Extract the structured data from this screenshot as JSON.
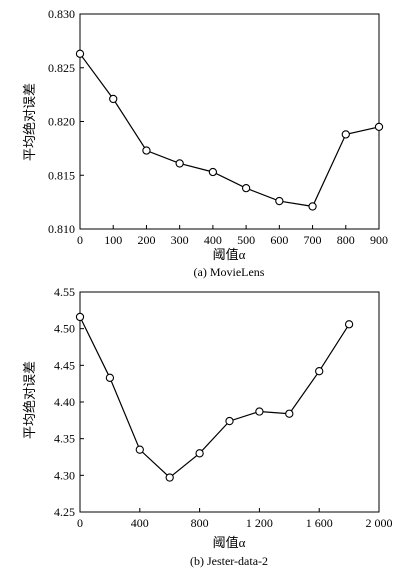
{
  "chart_data": [
    {
      "type": "line",
      "caption": "(a) MovieLens",
      "xlabel": "阈值α",
      "ylabel": "平均绝对误差",
      "xlim": [
        0,
        900
      ],
      "ylim": [
        0.81,
        0.83
      ],
      "xticks": [
        0,
        100,
        200,
        300,
        400,
        500,
        600,
        700,
        800,
        900
      ],
      "xtick_labels": [
        "0",
        "100",
        "200",
        "300",
        "400",
        "500",
        "600",
        "700",
        "800",
        "900"
      ],
      "yticks": [
        0.81,
        0.815,
        0.82,
        0.825,
        0.83
      ],
      "ytick_labels": [
        "0.810",
        "0.815",
        "0.820",
        "0.825",
        "0.830"
      ],
      "grid": false,
      "marker": "circle",
      "series": [
        {
          "x": [
            0,
            100,
            200,
            300,
            400,
            500,
            600,
            700,
            800,
            900
          ],
          "y": [
            0.8263,
            0.8221,
            0.8173,
            0.8161,
            0.8153,
            0.8138,
            0.8126,
            0.8121,
            0.8188,
            0.8195
          ]
        }
      ]
    },
    {
      "type": "line",
      "caption": "(b) Jester-data-2",
      "xlabel": "阈值α",
      "ylabel": "平均绝对误差",
      "xlim": [
        0,
        2000
      ],
      "ylim": [
        4.25,
        4.55
      ],
      "xticks": [
        0,
        400,
        800,
        1200,
        1600,
        2000
      ],
      "xtick_labels": [
        "0",
        "400",
        "800",
        "1 200",
        "1 600",
        "2 000"
      ],
      "yticks": [
        4.25,
        4.3,
        4.35,
        4.4,
        4.45,
        4.5,
        4.55
      ],
      "ytick_labels": [
        "4.25",
        "4.30",
        "4.35",
        "4.40",
        "4.45",
        "4.50",
        "4.55"
      ],
      "grid": false,
      "marker": "circle",
      "series": [
        {
          "x": [
            0,
            200,
            400,
            600,
            800,
            1000,
            1200,
            1400,
            1600,
            1800
          ],
          "y": [
            4.516,
            4.433,
            4.335,
            4.297,
            4.33,
            4.374,
            4.387,
            4.384,
            4.442,
            4.506
          ]
        }
      ]
    }
  ]
}
